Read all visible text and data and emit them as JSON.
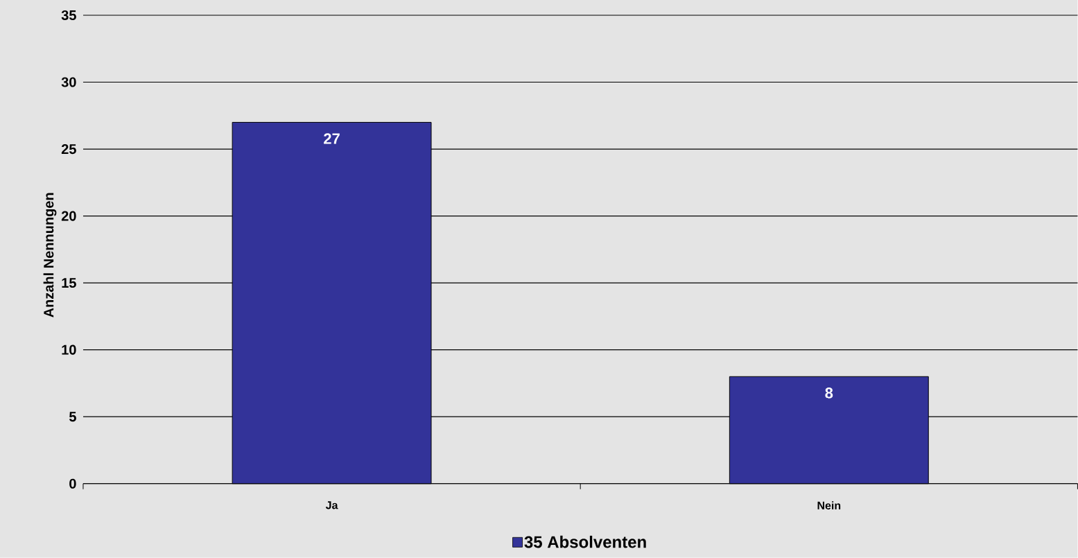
{
  "chart_data": {
    "type": "bar",
    "ylabel": "Anzahl Nennungen",
    "categories": [
      "Ja",
      "Nein"
    ],
    "series": [
      {
        "name": "35 Absolventen",
        "color": "#333399",
        "values": [
          27,
          8
        ]
      }
    ],
    "ylim": [
      0,
      35
    ],
    "yticks": [
      0,
      5,
      10,
      15,
      20,
      25,
      30,
      35
    ],
    "grid": "y",
    "legend": "bottom",
    "data_labels": true
  }
}
